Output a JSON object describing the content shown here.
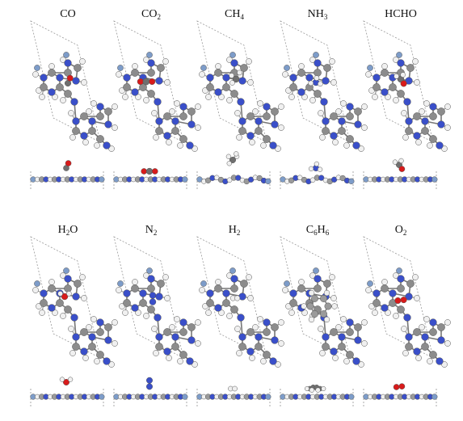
{
  "panels": [
    {
      "id": "co",
      "label": "CO",
      "sub": "",
      "tail": "",
      "parts": [
        {
          "t": "CO",
          "s": false
        }
      ],
      "colors": [
        "#7a7a7a",
        "#d81b1b"
      ]
    },
    {
      "id": "co2",
      "label": "CO2",
      "sub": "",
      "tail": "",
      "parts": [
        {
          "t": "CO",
          "s": false
        },
        {
          "t": "2",
          "s": true
        }
      ],
      "colors": [
        "#d81b1b",
        "#7a7a7a",
        "#d81b1b"
      ]
    },
    {
      "id": "ch4",
      "label": "CH4",
      "parts": [
        {
          "t": "CH",
          "s": false
        },
        {
          "t": "4",
          "s": true
        }
      ],
      "colors": [
        "#7a7a7a",
        "#e8e8e8"
      ]
    },
    {
      "id": "nh3",
      "label": "NH3",
      "parts": [
        {
          "t": "NH",
          "s": false
        },
        {
          "t": "3",
          "s": true
        }
      ],
      "colors": [
        "#3a4fc9",
        "#e8e8e8"
      ]
    },
    {
      "id": "hcho",
      "label": "HCHO",
      "parts": [
        {
          "t": "HCHO",
          "s": false
        }
      ],
      "colors": [
        "#7a7a7a",
        "#d81b1b",
        "#e8e8e8"
      ]
    },
    {
      "id": "h2o",
      "label": "H2O",
      "parts": [
        {
          "t": "H",
          "s": false
        },
        {
          "t": "2",
          "s": true
        },
        {
          "t": "O",
          "s": false
        }
      ],
      "colors": [
        "#d81b1b",
        "#e8e8e8"
      ]
    },
    {
      "id": "n2",
      "label": "N2",
      "parts": [
        {
          "t": "N",
          "s": false
        },
        {
          "t": "2",
          "s": true
        }
      ],
      "colors": [
        "#3a4fc9"
      ]
    },
    {
      "id": "h2",
      "label": "H2",
      "parts": [
        {
          "t": "H",
          "s": false
        },
        {
          "t": "2",
          "s": true
        }
      ],
      "colors": [
        "#e8e8e8"
      ]
    },
    {
      "id": "c6h6",
      "label": "C6H6",
      "parts": [
        {
          "t": "C",
          "s": false
        },
        {
          "t": "6",
          "s": true
        },
        {
          "t": "H",
          "s": false
        },
        {
          "t": "6",
          "s": true
        }
      ],
      "colors": [
        "#7a7a7a",
        "#e8e8e8"
      ]
    },
    {
      "id": "o2",
      "label": "O2",
      "parts": [
        {
          "t": "O",
          "s": false
        },
        {
          "t": "2",
          "s": true
        }
      ],
      "colors": [
        "#d81b1b"
      ]
    }
  ],
  "atom_colors": {
    "carbon": "#8c8c8c",
    "nitrogen": "#3a4fc9",
    "hydrogen": "#f0f0f0",
    "oxygen": "#d81b1b",
    "substrate_edge": "#7d9cc9"
  }
}
